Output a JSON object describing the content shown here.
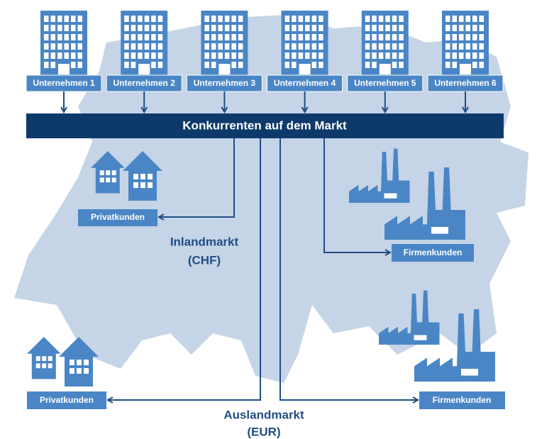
{
  "companies": [
    "Unternehmen 1",
    "Unternehmen 2",
    "Unternehmen 3",
    "Unternehmen 4",
    "Unternehmen 5",
    "Unternehmen 6"
  ],
  "market": "Konkurrenten auf dem Markt",
  "domestic": {
    "label": [
      "Inlandmarkt",
      "(CHF)"
    ],
    "private": "Privatkunden",
    "business": "Firmenkunden"
  },
  "foreign": {
    "label": [
      "Auslandmarkt",
      "(EUR)"
    ],
    "private": "Privatkunden",
    "business": "Firmenkunden"
  }
}
